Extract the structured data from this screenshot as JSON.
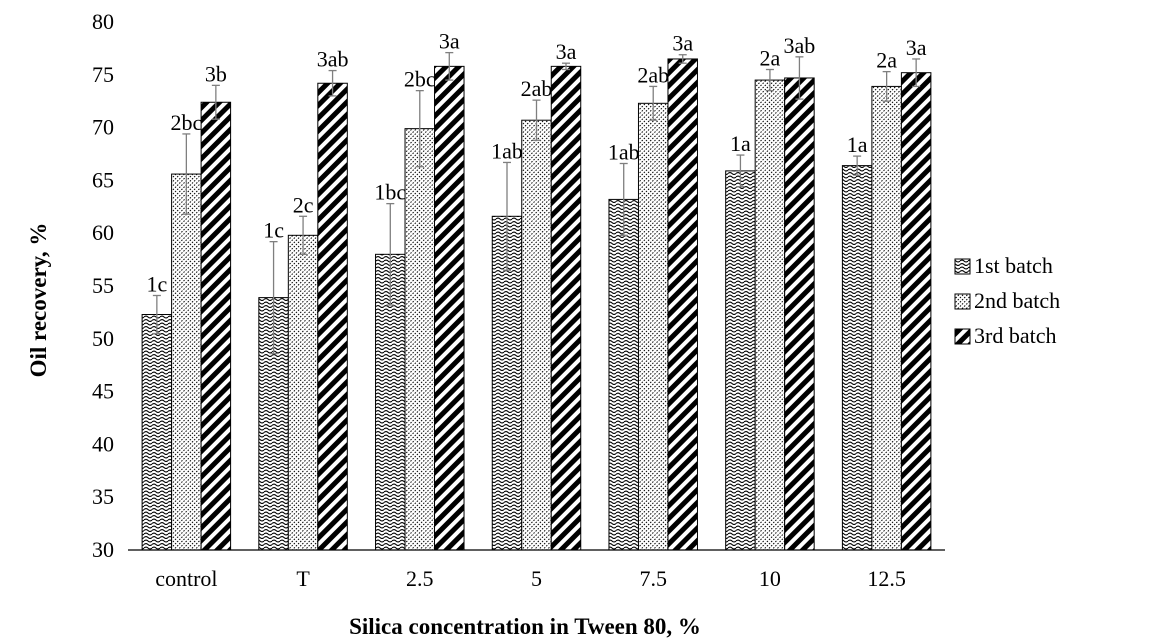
{
  "chart_data": {
    "type": "bar",
    "title": "",
    "xlabel": "Silica concentration in Tween 80, %",
    "ylabel": "Oil recovery, %",
    "ylim": [
      30,
      80
    ],
    "yticks": [
      "30",
      "35",
      "40",
      "45",
      "50",
      "55",
      "60",
      "65",
      "70",
      "75",
      "80"
    ],
    "categories": [
      "control",
      "T",
      "2.5",
      "5",
      "7.5",
      "10",
      "12.5"
    ],
    "grid": false,
    "legend_position": "right",
    "series": [
      {
        "name": "1st batch",
        "pattern": "wave",
        "values": [
          52.3,
          53.9,
          58.0,
          61.6,
          63.2,
          65.9,
          66.4
        ],
        "errors": [
          1.8,
          5.3,
          4.8,
          5.1,
          3.4,
          1.5,
          0.9
        ],
        "labels": [
          "1c",
          "1c",
          "1bc",
          "1ab",
          "1ab",
          "1a",
          "1a"
        ]
      },
      {
        "name": "2nd batch",
        "pattern": "dots",
        "values": [
          65.6,
          59.8,
          69.9,
          70.7,
          72.3,
          74.5,
          73.9
        ],
        "errors": [
          3.8,
          1.8,
          3.6,
          1.9,
          1.6,
          1.0,
          1.4
        ],
        "labels": [
          "2bc",
          "2c",
          "2bc",
          "2ab",
          "2ab",
          "2a",
          "2a"
        ]
      },
      {
        "name": "3rd batch",
        "pattern": "diagonal",
        "values": [
          72.4,
          74.2,
          75.8,
          75.8,
          76.5,
          74.7,
          75.2
        ],
        "errors": [
          1.6,
          1.2,
          1.3,
          0.3,
          0.4,
          2.0,
          1.3
        ],
        "labels": [
          "3b",
          "3ab",
          "3a",
          "3a",
          "3a",
          "3ab",
          "3a"
        ]
      }
    ],
    "colors": {
      "fill_fg": "#000000",
      "fill_bg": "#ffffff",
      "error_bar": "#7f7f7f"
    }
  }
}
